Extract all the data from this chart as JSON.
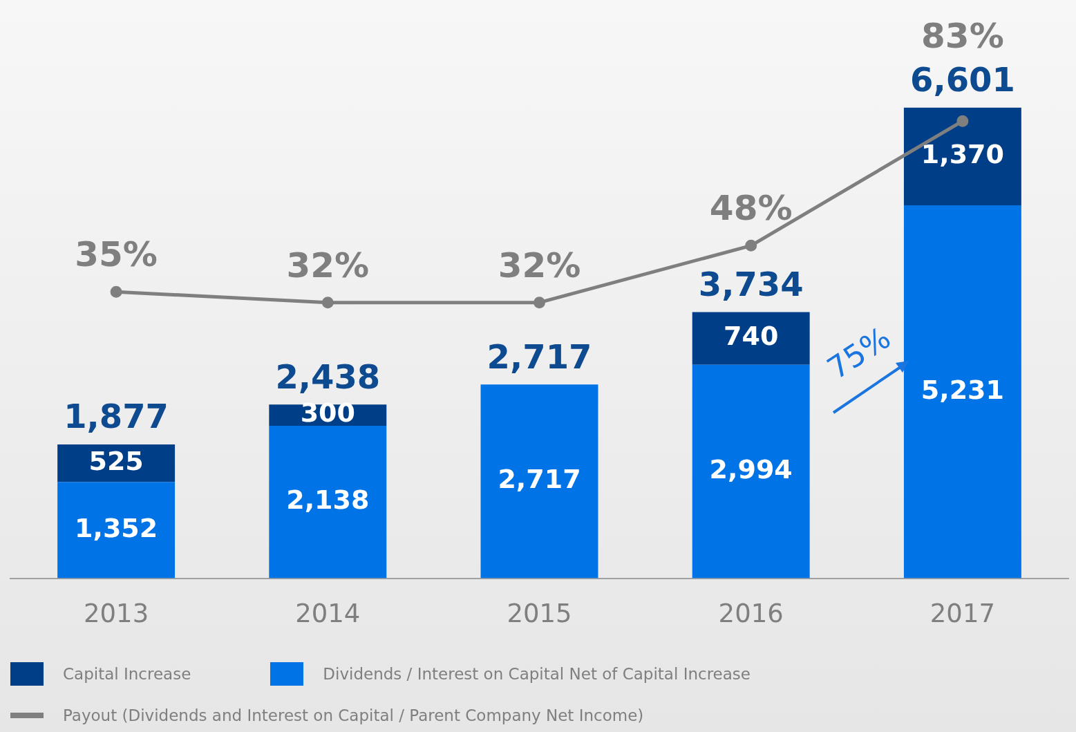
{
  "chart_data": {
    "type": "bar",
    "stacked": true,
    "categories": [
      "2013",
      "2014",
      "2015",
      "2016",
      "2017"
    ],
    "series": [
      {
        "name": "Dividends / Interest on Capital Net of Capital Increase",
        "color": "#0073e6",
        "values": [
          1352,
          2138,
          2717,
          2994,
          5231
        ],
        "value_labels": [
          "1,352",
          "2,138",
          "2,717",
          "2,994",
          "5,231"
        ]
      },
      {
        "name": "Capital Increase",
        "color": "#003f87",
        "values": [
          525,
          300,
          null,
          740,
          1370
        ],
        "value_labels": [
          "525",
          "300",
          null,
          "740",
          "1,370"
        ]
      },
      {
        "name": "Payout (Dividends and Interest on Capital / Parent Company Net Income)",
        "type": "line",
        "axis": "y2",
        "color": "#7f7f7f",
        "marker": "circle",
        "values": [
          35,
          32,
          32,
          48,
          83
        ],
        "value_labels": [
          "35%",
          "32%",
          "32%",
          "48%",
          "83%"
        ]
      }
    ],
    "totals": [
      "1,877",
      "2,438",
      "2,717",
      "3,734",
      "6,601"
    ],
    "tick_labels": "x",
    "grid": false,
    "legend": "bottom",
    "annotations": [
      "75%"
    ]
  }
}
